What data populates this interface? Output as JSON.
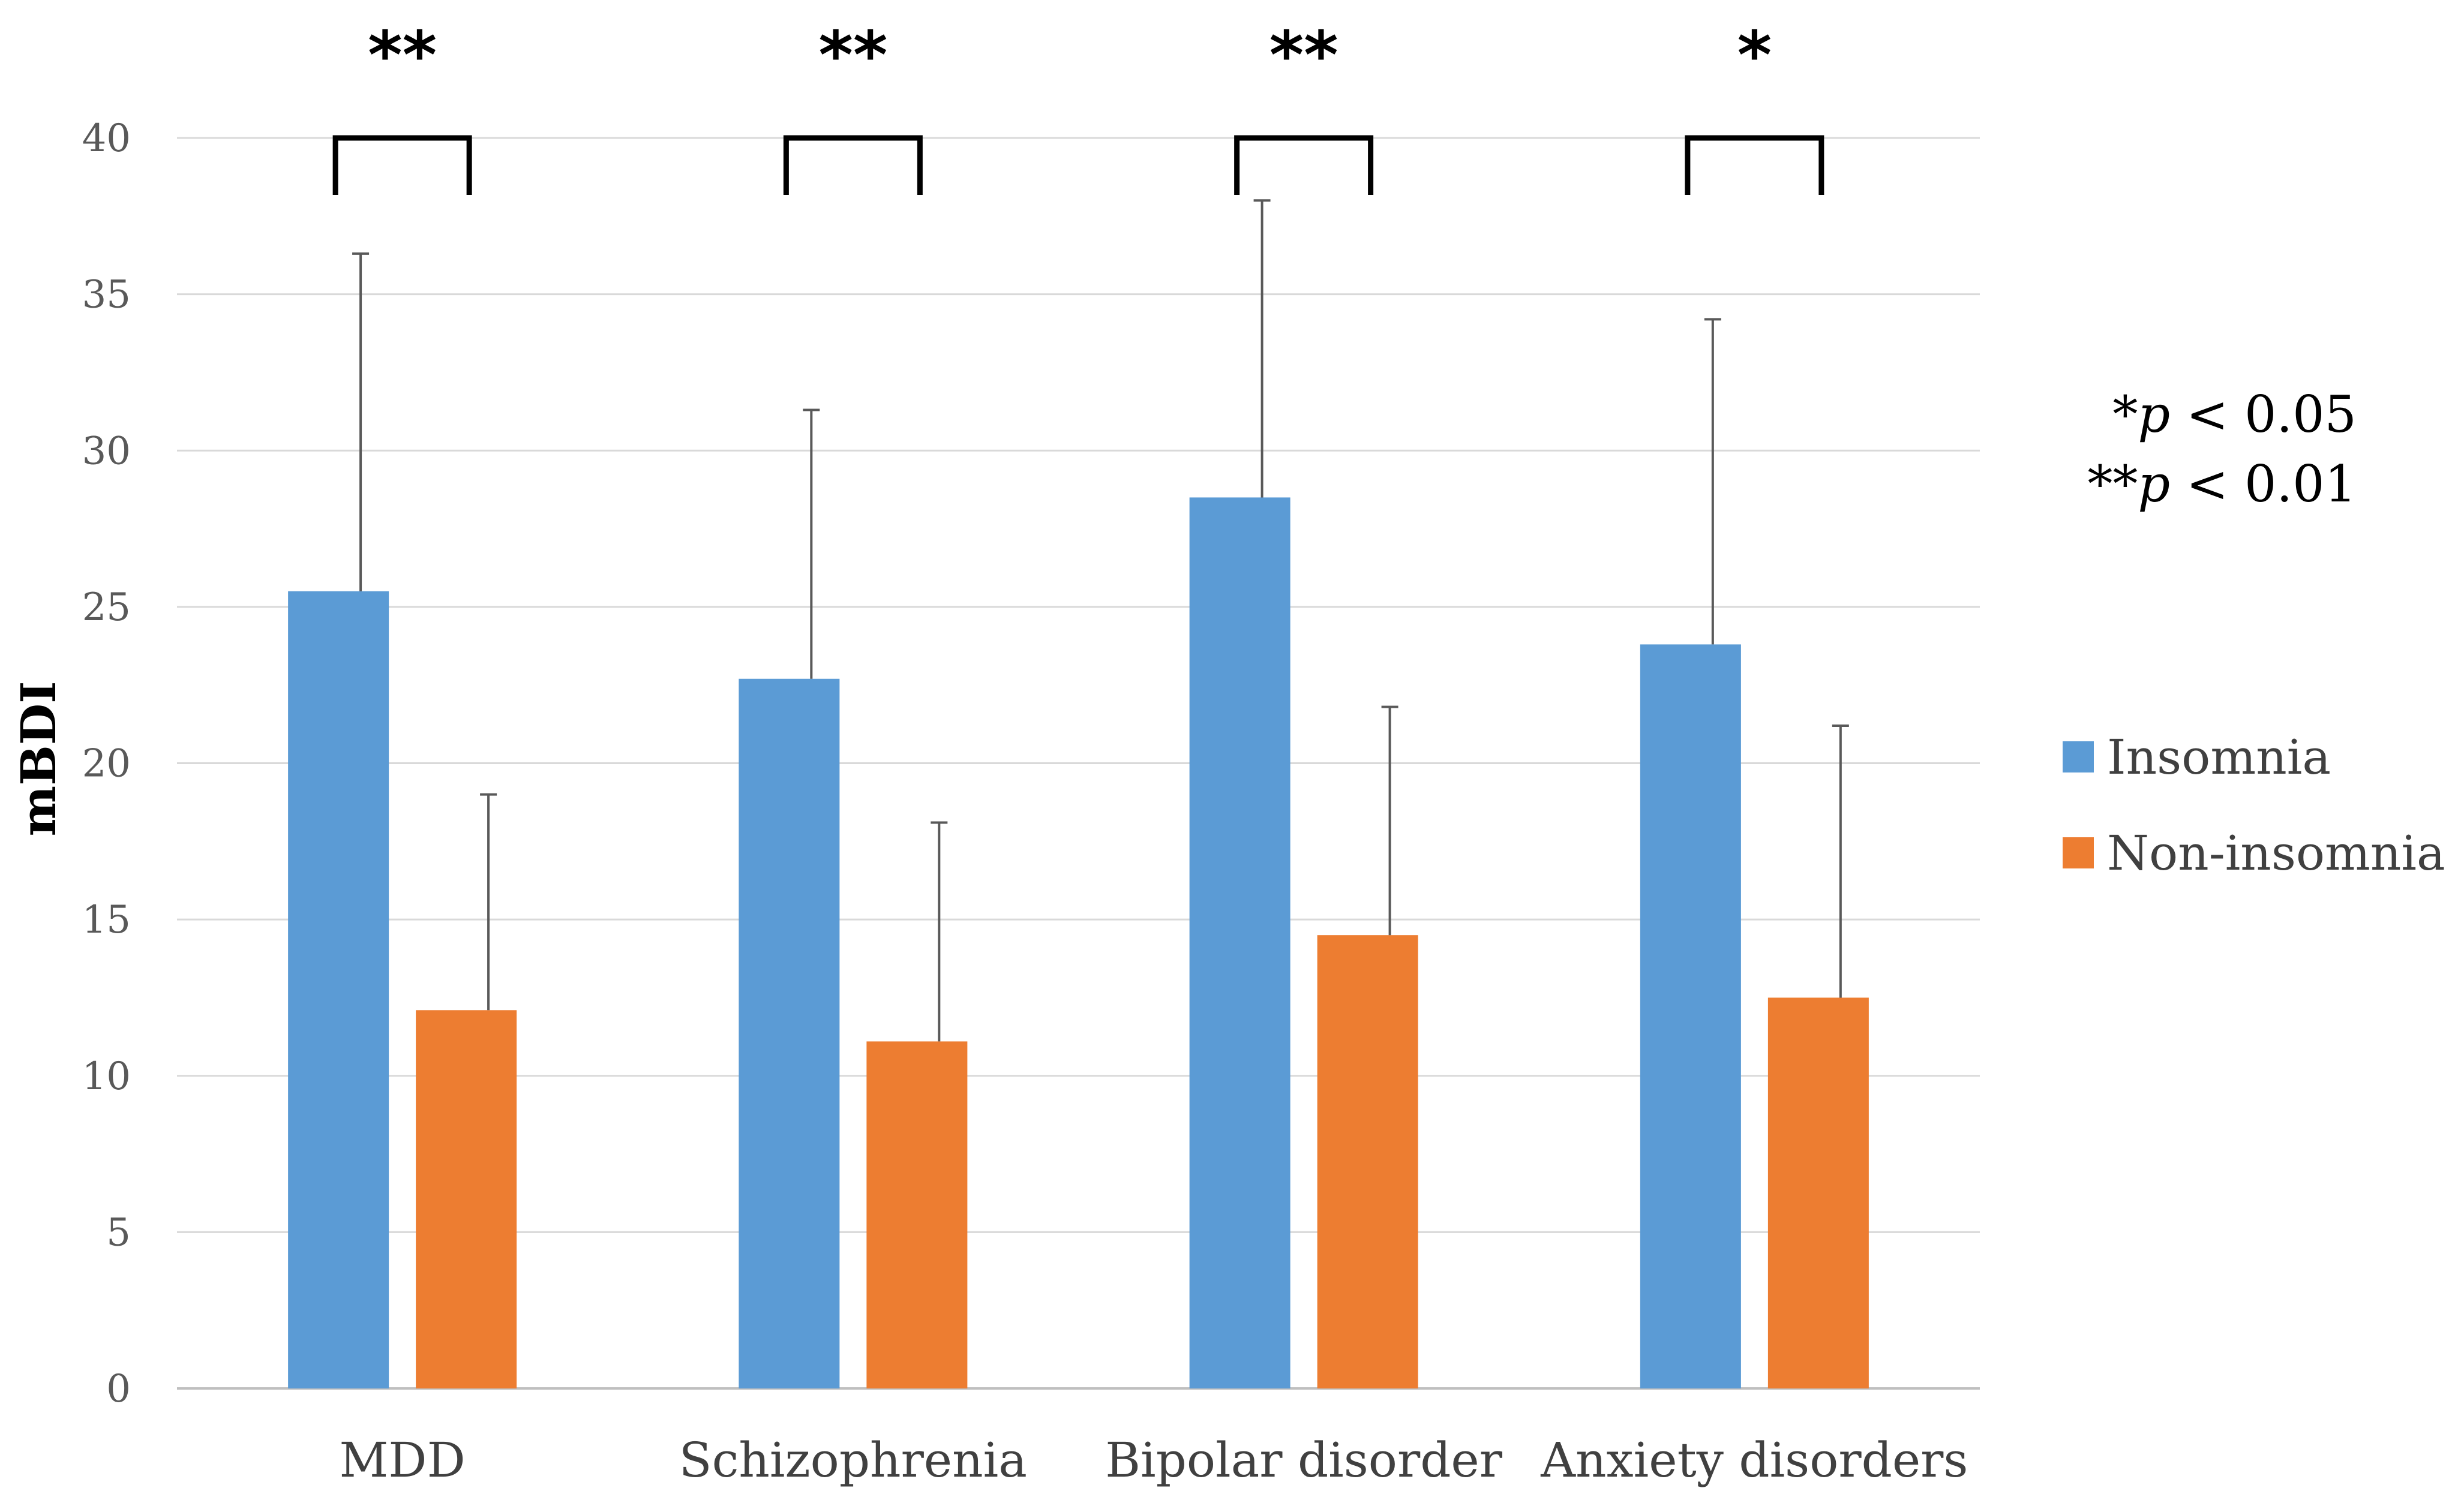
{
  "chart_data": {
    "type": "bar",
    "title": "",
    "xlabel": "",
    "ylabel": "mBDI",
    "ylim": [
      0,
      40
    ],
    "yticks": [
      0,
      5,
      10,
      15,
      20,
      25,
      30,
      35,
      40
    ],
    "grid": true,
    "categories": [
      "MDD",
      "Schizophrenia",
      "Bipolar disorder",
      "Anxiety disorders"
    ],
    "series": [
      {
        "name": "Insomnia",
        "color": "#5B9BD5",
        "values": [
          25.5,
          22.7,
          28.5,
          23.8
        ],
        "error_upper": [
          36.3,
          31.3,
          38.0,
          34.2
        ]
      },
      {
        "name": "Non-insomnia",
        "color": "#ED7D31",
        "values": [
          12.1,
          11.1,
          14.5,
          12.5
        ],
        "error_upper": [
          19.0,
          18.1,
          21.8,
          21.2
        ]
      }
    ],
    "significance": [
      "**",
      "**",
      "**",
      "*"
    ],
    "legend_position": "right",
    "annotations": [
      {
        "stars": "*",
        "p": "p",
        "rest": " < 0.05"
      },
      {
        "stars": "**",
        "p": "p",
        "rest": " < 0.01"
      }
    ]
  }
}
